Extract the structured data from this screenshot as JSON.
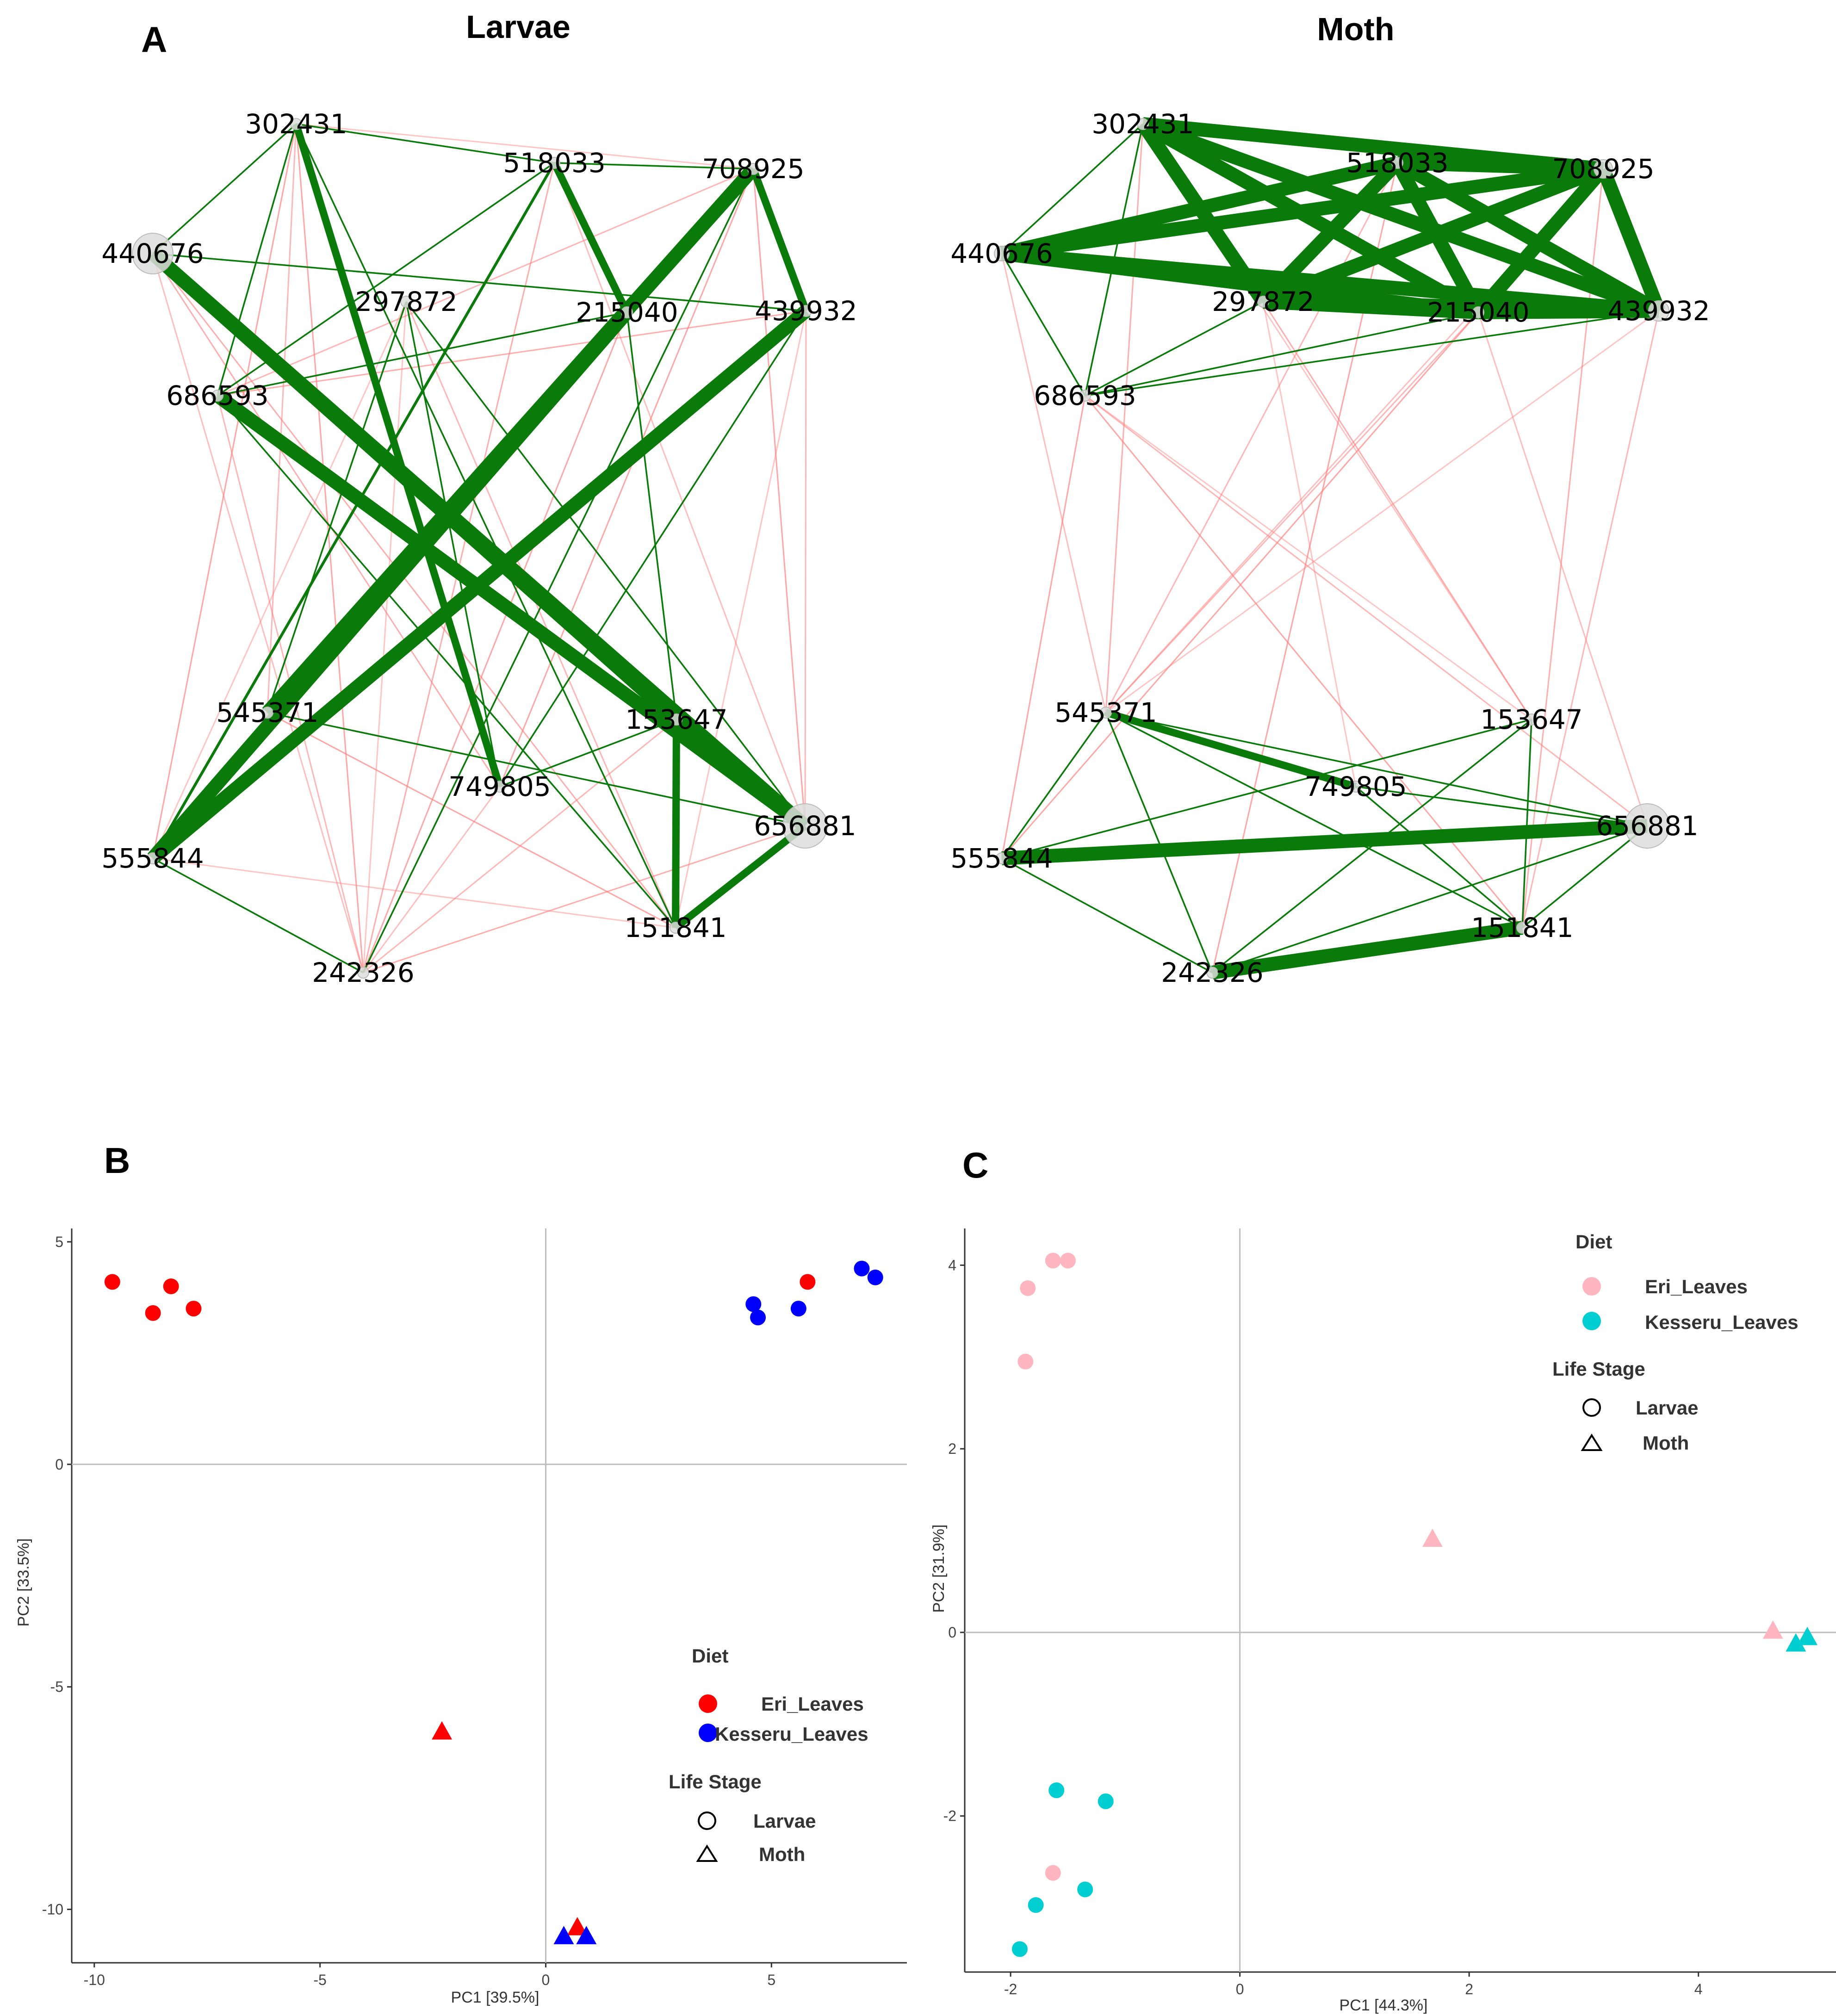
{
  "panels": {
    "a": {
      "letter": "A"
    },
    "b": {
      "letter": "B"
    },
    "c": {
      "letter": "C"
    }
  },
  "colors": {
    "positive_edge": "#0a7a0a",
    "negative_edge": "#ff7f7f",
    "node_fill": "#dddddd",
    "eri": "#ff0000",
    "kesseru": "#0000ff",
    "eri_pale": "#ffb6c1",
    "kesseru_cyan": "#00ced1"
  },
  "chart_data": [
    {
      "type": "network",
      "title": "Larvae",
      "nodes": [
        "302431",
        "518033",
        "708925",
        "440676",
        "297872",
        "215040",
        "439932",
        "686593",
        "545371",
        "153647",
        "749805",
        "656881",
        "555844",
        "151841",
        "242326"
      ],
      "positive_edges": [
        [
          "440676",
          "656881",
          3
        ],
        [
          "440676",
          "153647",
          3
        ],
        [
          "555844",
          "215040",
          3
        ],
        [
          "555844",
          "439932",
          3
        ],
        [
          "545371",
          "708925",
          3
        ],
        [
          "686593",
          "656881",
          3
        ],
        [
          "708925",
          "439932",
          2
        ],
        [
          "518033",
          "215040",
          2
        ],
        [
          "302431",
          "749805",
          2
        ],
        [
          "151841",
          "656881",
          2
        ],
        [
          "153647",
          "151841",
          2
        ],
        [
          "555844",
          "518033",
          1.2
        ],
        [
          "302431",
          "440676",
          1
        ],
        [
          "302431",
          "518033",
          1
        ],
        [
          "302431",
          "151841",
          1
        ],
        [
          "518033",
          "708925",
          1
        ],
        [
          "440676",
          "439932",
          1
        ],
        [
          "297872",
          "656881",
          1
        ],
        [
          "297872",
          "545371",
          1
        ],
        [
          "686593",
          "151841",
          1
        ],
        [
          "555844",
          "242326",
          1
        ],
        [
          "749805",
          "153647",
          1
        ],
        [
          "215040",
          "153647",
          1
        ],
        [
          "439932",
          "749805",
          1
        ],
        [
          "302431",
          "686593",
          1
        ],
        [
          "708925",
          "242326",
          1
        ],
        [
          "518033",
          "686593",
          1
        ],
        [
          "297872",
          "749805",
          1
        ],
        [
          "545371",
          "656881",
          1
        ],
        [
          "215040",
          "686593",
          1
        ]
      ],
      "negative_edges": [
        [
          "302431",
          "708925"
        ],
        [
          "302431",
          "545371"
        ],
        [
          "302431",
          "555844"
        ],
        [
          "518033",
          "555844"
        ],
        [
          "518033",
          "242326"
        ],
        [
          "708925",
          "555844"
        ],
        [
          "708925",
          "686593"
        ],
        [
          "708925",
          "656881"
        ],
        [
          "440676",
          "242326"
        ],
        [
          "440676",
          "151841"
        ],
        [
          "297872",
          "242326"
        ],
        [
          "297872",
          "151841"
        ],
        [
          "215040",
          "242326"
        ],
        [
          "215040",
          "545371"
        ],
        [
          "439932",
          "686593"
        ],
        [
          "439932",
          "151841"
        ],
        [
          "686593",
          "242326"
        ],
        [
          "545371",
          "151841"
        ],
        [
          "749805",
          "242326"
        ],
        [
          "656881",
          "242326"
        ],
        [
          "555844",
          "151841"
        ],
        [
          "153647",
          "242326"
        ],
        [
          "302431",
          "242326"
        ],
        [
          "518033",
          "656881"
        ],
        [
          "440676",
          "749805"
        ],
        [
          "297872",
          "555844"
        ],
        [
          "439932",
          "656881"
        ],
        [
          "708925",
          "749805"
        ]
      ]
    },
    {
      "type": "network",
      "title": "Moth",
      "nodes": [
        "302431",
        "518033",
        "708925",
        "440676",
        "297872",
        "215040",
        "439932",
        "686593",
        "545371",
        "153647",
        "749805",
        "656881",
        "555844",
        "151841",
        "242326"
      ],
      "positive_edges": [
        [
          "302431",
          "708925",
          3
        ],
        [
          "302431",
          "439932",
          3
        ],
        [
          "302431",
          "215040",
          3
        ],
        [
          "302431",
          "297872",
          3
        ],
        [
          "440676",
          "708925",
          3
        ],
        [
          "440676",
          "439932",
          3
        ],
        [
          "440676",
          "518033",
          3
        ],
        [
          "440676",
          "215040",
          3
        ],
        [
          "518033",
          "215040",
          3
        ],
        [
          "518033",
          "297872",
          3
        ],
        [
          "518033",
          "439932",
          3
        ],
        [
          "518033",
          "708925",
          3
        ],
        [
          "708925",
          "297872",
          3
        ],
        [
          "708925",
          "215040",
          3
        ],
        [
          "708925",
          "439932",
          3
        ],
        [
          "297872",
          "439932",
          3
        ],
        [
          "215040",
          "439932",
          3
        ],
        [
          "297872",
          "215040",
          3
        ],
        [
          "440676",
          "686593",
          1
        ],
        [
          "440676",
          "302431",
          1
        ],
        [
          "686593",
          "302431",
          1
        ],
        [
          "686593",
          "297872",
          1
        ],
        [
          "686593",
          "439932",
          1
        ],
        [
          "686593",
          "215040",
          1
        ],
        [
          "555844",
          "656881",
          3
        ],
        [
          "242326",
          "151841",
          3
        ],
        [
          "545371",
          "749805",
          2
        ],
        [
          "545371",
          "555844",
          1
        ],
        [
          "545371",
          "656881",
          1
        ],
        [
          "545371",
          "151841",
          1
        ],
        [
          "545371",
          "242326",
          1
        ],
        [
          "555844",
          "153647",
          1
        ],
        [
          "555844",
          "242326",
          1
        ],
        [
          "153647",
          "151841",
          1
        ],
        [
          "153647",
          "242326",
          1
        ],
        [
          "656881",
          "151841",
          1
        ],
        [
          "749805",
          "151841",
          1
        ],
        [
          "656881",
          "749805",
          1
        ],
        [
          "242326",
          "656881",
          1
        ]
      ],
      "negative_edges": [
        [
          "686593",
          "153647"
        ],
        [
          "686593",
          "656881"
        ],
        [
          "686593",
          "555844"
        ],
        [
          "440676",
          "545371"
        ],
        [
          "302431",
          "545371"
        ],
        [
          "302431",
          "153647"
        ],
        [
          "518033",
          "545371"
        ],
        [
          "518033",
          "242326"
        ],
        [
          "708925",
          "545371"
        ],
        [
          "708925",
          "151841"
        ],
        [
          "439932",
          "545371"
        ],
        [
          "439932",
          "151841"
        ],
        [
          "215040",
          "555844"
        ],
        [
          "215040",
          "656881"
        ],
        [
          "297872",
          "153647"
        ],
        [
          "297872",
          "749805"
        ],
        [
          "215040",
          "545371"
        ],
        [
          "686593",
          "151841"
        ]
      ]
    },
    {
      "type": "scatter",
      "xlabel": "PC1  [39.5%]",
      "ylabel": "PC2  [33.5%]",
      "xlim": [
        -10.5,
        8
      ],
      "ylim": [
        -11.2,
        5.3
      ],
      "xticks": [
        -10,
        -5,
        0,
        5
      ],
      "yticks": [
        5,
        0,
        -5,
        -10
      ],
      "legend": {
        "diet_title": "Diet",
        "diet_items": [
          {
            "label": "Eri_Leaves",
            "color": "#ff0000"
          },
          {
            "label": "Kesseru_Leaves",
            "color": "#0000ff"
          }
        ],
        "stage_title": "Life Stage",
        "stage_items": [
          {
            "label": "Larvae",
            "shape": "circle"
          },
          {
            "label": "Moth",
            "shape": "triangle"
          }
        ]
      },
      "series": [
        {
          "name": "Eri_Leaves Larvae",
          "color": "#ff0000",
          "shape": "circle",
          "points": [
            [
              -9.6,
              4.1
            ],
            [
              -8.7,
              3.4
            ],
            [
              -8.3,
              4.0
            ],
            [
              -7.8,
              3.5
            ],
            [
              5.8,
              4.1
            ]
          ]
        },
        {
          "name": "Kesseru_Leaves Larvae",
          "color": "#0000ff",
          "shape": "circle",
          "points": [
            [
              4.6,
              3.6
            ],
            [
              4.7,
              3.3
            ],
            [
              5.6,
              3.5
            ],
            [
              7.0,
              4.4
            ],
            [
              7.3,
              4.2
            ]
          ]
        },
        {
          "name": "Eri_Leaves Moth",
          "color": "#ff0000",
          "shape": "triangle",
          "points": [
            [
              -2.3,
              -6.0
            ],
            [
              0.7,
              -10.4
            ]
          ]
        },
        {
          "name": "Kesseru_Leaves Moth",
          "color": "#0000ff",
          "shape": "triangle",
          "points": [
            [
              0.4,
              -10.6
            ],
            [
              0.9,
              -10.6
            ]
          ]
        }
      ]
    },
    {
      "type": "scatter",
      "xlabel": "PC1  [44.3%]",
      "ylabel": "PC2  [31.9%]",
      "xlim": [
        -2.4,
        5.2
      ],
      "ylim": [
        -3.7,
        4.4
      ],
      "xticks": [
        -2,
        0,
        2,
        4
      ],
      "yticks": [
        4,
        2,
        0,
        -2
      ],
      "legend": {
        "diet_title": "Diet",
        "diet_items": [
          {
            "label": "Eri_Leaves",
            "color": "#ffb6c1"
          },
          {
            "label": "Kesseru_Leaves",
            "color": "#00ced1"
          }
        ],
        "stage_title": "Life Stage",
        "stage_items": [
          {
            "label": "Larvae",
            "shape": "circle"
          },
          {
            "label": "Moth",
            "shape": "triangle"
          }
        ]
      },
      "series": [
        {
          "name": "Eri_Leaves Larvae",
          "color": "#ffb6c1",
          "shape": "circle",
          "points": [
            [
              -1.85,
              3.75
            ],
            [
              -1.63,
              4.05
            ],
            [
              -1.5,
              4.05
            ],
            [
              -1.87,
              2.95
            ],
            [
              -1.63,
              -2.62
            ]
          ]
        },
        {
          "name": "Kesseru_Leaves Larvae",
          "color": "#00ced1",
          "shape": "circle",
          "points": [
            [
              -1.6,
              -1.72
            ],
            [
              -1.17,
              -1.84
            ],
            [
              -1.78,
              -2.97
            ],
            [
              -1.35,
              -2.8
            ],
            [
              -1.92,
              -3.45
            ]
          ]
        },
        {
          "name": "Eri_Leaves Moth",
          "color": "#ffb6c1",
          "shape": "triangle",
          "points": [
            [
              1.68,
              1.02
            ],
            [
              4.65,
              0.02
            ]
          ]
        },
        {
          "name": "Kesseru_Leaves Moth",
          "color": "#00ced1",
          "shape": "triangle",
          "points": [
            [
              4.85,
              -0.12
            ],
            [
              4.95,
              -0.05
            ]
          ]
        }
      ]
    }
  ]
}
